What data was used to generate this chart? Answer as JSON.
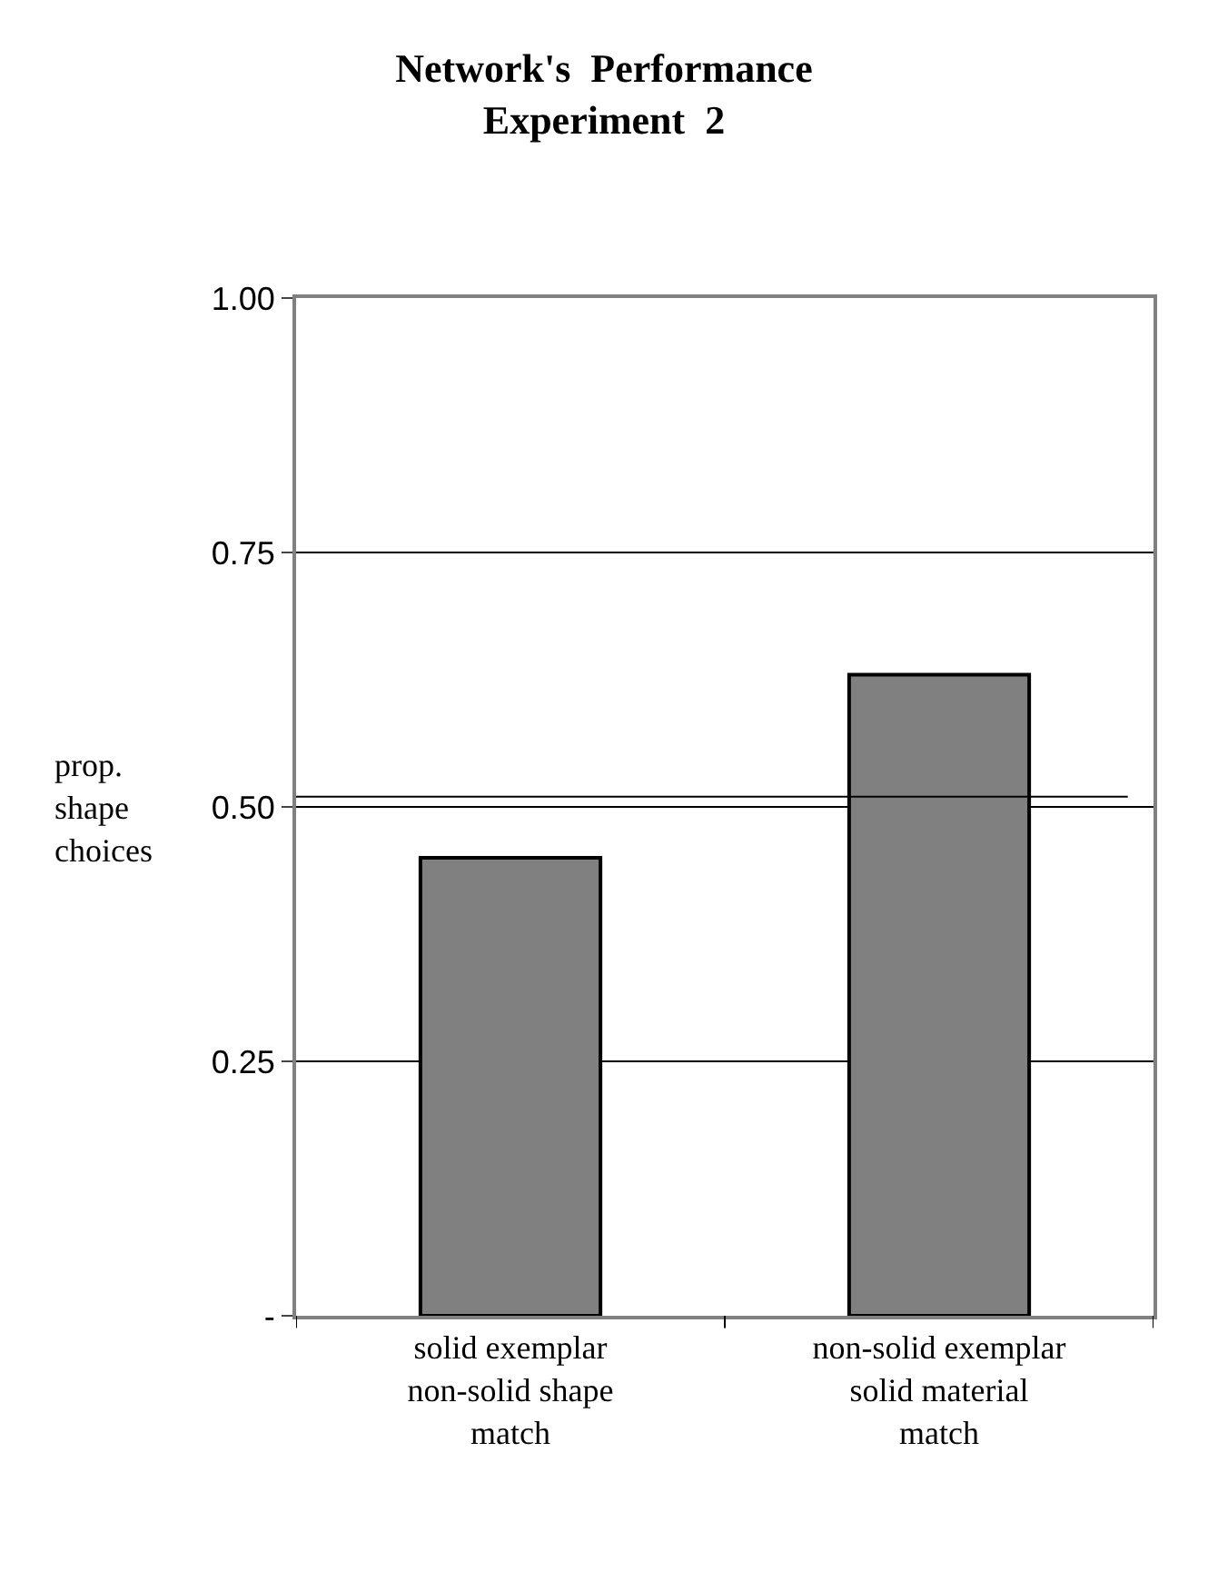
{
  "chart_data": {
    "type": "bar",
    "title": "Network's  Performance\nExperiment  2",
    "ylabel": "prop.\nshape\nchoices",
    "categories": [
      "solid exemplar\nnon-solid shape\nmatch",
      "non-solid exemplar\nsolid material\nmatch"
    ],
    "values": [
      0.45,
      0.63
    ],
    "color": "#808080",
    "ylim": [
      0,
      1
    ],
    "yticks": [
      {
        "value": 0,
        "label": "-"
      },
      0.25,
      {
        "value": 0.5,
        "label": "0.50"
      },
      0.75,
      {
        "value": 1,
        "label": "1.00"
      }
    ],
    "grid": "y",
    "legend": false,
    "ref_lines": [
      {
        "axis": "y",
        "value": 0.51,
        "color": "#000000"
      }
    ]
  }
}
